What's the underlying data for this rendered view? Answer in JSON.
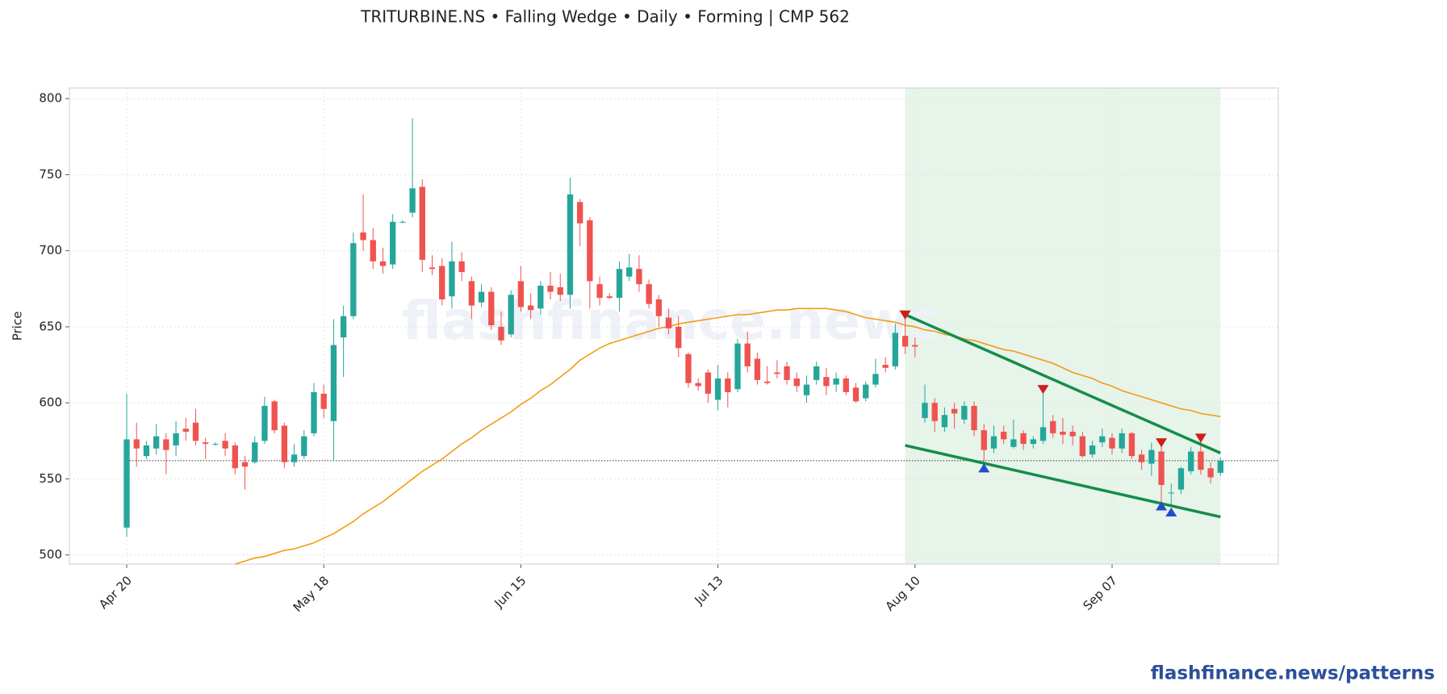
{
  "chart_data": {
    "type": "candlestick",
    "title": "TRITURBINE.NS  •  Falling Wedge  •  Daily  •  Forming  |  CMP 562",
    "ylabel": "Price",
    "watermark": "flashfinance.news",
    "categories": [
      "Apr 20",
      null,
      null,
      null,
      null,
      null,
      null,
      null,
      null,
      null,
      null,
      null,
      null,
      null,
      null,
      null,
      null,
      null,
      null,
      null,
      "May 18",
      null,
      null,
      null,
      null,
      null,
      null,
      null,
      null,
      null,
      null,
      null,
      null,
      null,
      null,
      null,
      null,
      null,
      null,
      null,
      "Jun 15",
      null,
      null,
      null,
      null,
      null,
      null,
      null,
      null,
      null,
      null,
      null,
      null,
      null,
      null,
      null,
      null,
      null,
      null,
      null,
      "Jul 13",
      null,
      null,
      null,
      null,
      null,
      null,
      null,
      null,
      null,
      null,
      null,
      null,
      null,
      null,
      null,
      null,
      null,
      null,
      null,
      "Aug 10",
      null,
      null,
      null,
      null,
      null,
      null,
      null,
      null,
      null,
      null,
      null,
      null,
      null,
      null,
      null,
      null,
      null,
      null,
      null,
      "Sep 07",
      null,
      null,
      null,
      null,
      null,
      null,
      null,
      null,
      null,
      null,
      null
    ],
    "open": [
      518,
      576,
      565,
      570,
      576,
      572,
      583,
      587,
      574,
      573,
      575,
      572,
      561,
      561,
      575,
      601,
      585,
      561,
      565,
      580,
      606,
      588,
      643,
      657,
      712,
      707,
      693,
      691,
      719,
      725,
      742,
      689,
      690,
      670,
      693,
      680,
      666,
      673,
      650,
      645,
      680,
      664,
      662,
      677,
      676,
      671,
      732,
      720,
      678,
      670,
      669,
      683,
      688,
      678,
      668,
      656,
      650,
      632,
      613,
      620,
      602,
      616,
      609,
      639,
      629,
      614,
      620,
      624,
      616,
      605,
      615,
      617,
      612,
      616,
      610,
      603,
      612,
      625,
      624,
      644,
      638,
      590,
      600,
      584,
      596,
      589,
      598,
      582,
      570,
      581,
      571,
      580,
      573,
      575,
      588,
      581,
      581,
      578,
      566,
      574,
      577,
      570,
      580,
      566,
      560,
      568,
      541,
      543,
      555,
      568,
      557,
      554
    ],
    "high": [
      606,
      587,
      575,
      586,
      580,
      588,
      590,
      596,
      577,
      574,
      580,
      574,
      565,
      578,
      604,
      602,
      587,
      573,
      582,
      613,
      612,
      655,
      664,
      712,
      737,
      715,
      702,
      724,
      720,
      787,
      747,
      697,
      695,
      706,
      699,
      683,
      678,
      676,
      660,
      674,
      690,
      672,
      680,
      686,
      685,
      748,
      734,
      722,
      683,
      672,
      693,
      698,
      697,
      681,
      671,
      662,
      657,
      633,
      616,
      622,
      625,
      620,
      642,
      647,
      633,
      624,
      628,
      627,
      620,
      618,
      627,
      623,
      620,
      618,
      613,
      614,
      629,
      630,
      652,
      658,
      643,
      612,
      603,
      597,
      600,
      601,
      601,
      586,
      585,
      585,
      589,
      582,
      578,
      607,
      592,
      590,
      585,
      581,
      575,
      583,
      580,
      583,
      581,
      569,
      574,
      573,
      547,
      558,
      571,
      577,
      561,
      564
    ],
    "low": [
      512,
      558,
      563,
      566,
      553,
      565,
      575,
      572,
      563,
      572,
      565,
      553,
      543,
      560,
      573,
      580,
      557,
      558,
      563,
      578,
      590,
      562,
      617,
      655,
      700,
      688,
      685,
      688,
      718,
      722,
      686,
      684,
      664,
      662,
      680,
      655,
      663,
      648,
      638,
      643,
      660,
      655,
      658,
      668,
      667,
      662,
      703,
      662,
      664,
      668,
      660,
      680,
      673,
      662,
      650,
      645,
      630,
      610,
      608,
      600,
      595,
      597,
      607,
      620,
      612,
      612,
      616,
      612,
      607,
      600,
      612,
      605,
      607,
      605,
      600,
      601,
      610,
      620,
      622,
      632,
      630,
      587,
      581,
      581,
      583,
      586,
      578,
      558,
      567,
      573,
      570,
      569,
      570,
      573,
      577,
      573,
      572,
      564,
      564,
      571,
      566,
      567,
      563,
      556,
      552,
      535,
      532,
      540,
      553,
      553,
      547,
      552
    ],
    "close": [
      576,
      570,
      572,
      578,
      569,
      580,
      581,
      575,
      573,
      573,
      570,
      557,
      558,
      574,
      598,
      582,
      561,
      566,
      578,
      607,
      596,
      638,
      657,
      705,
      707,
      693,
      690,
      719,
      719,
      741,
      694,
      688,
      668,
      693,
      686,
      664,
      673,
      651,
      641,
      671,
      663,
      661,
      677,
      673,
      671,
      737,
      718,
      680,
      669,
      669,
      688,
      689,
      678,
      665,
      657,
      649,
      636,
      613,
      611,
      606,
      616,
      607,
      639,
      624,
      615,
      613,
      619,
      615,
      611,
      612,
      624,
      611,
      616,
      607,
      601,
      612,
      619,
      623,
      646,
      637,
      637,
      600,
      588,
      592,
      593,
      598,
      582,
      569,
      578,
      576,
      576,
      573,
      576,
      584,
      580,
      579,
      578,
      565,
      572,
      578,
      570,
      580,
      565,
      561,
      569,
      546,
      541,
      557,
      568,
      556,
      551,
      562
    ],
    "up_color": "#26a69a",
    "down_color": "#ef5350",
    "ma": {
      "color": "#f39c12",
      "values": [
        null,
        null,
        null,
        null,
        null,
        null,
        null,
        null,
        null,
        null,
        null,
        494,
        496,
        498,
        499,
        501,
        503,
        504,
        506,
        508,
        511,
        514,
        518,
        522,
        527,
        531,
        535,
        540,
        545,
        550,
        555,
        559,
        563,
        568,
        573,
        577,
        582,
        586,
        590,
        594,
        599,
        603,
        608,
        612,
        617,
        622,
        628,
        632,
        636,
        639,
        641,
        643,
        645,
        647,
        649,
        650,
        652,
        653,
        654,
        655,
        656,
        657,
        658,
        658,
        659,
        660,
        661,
        661,
        662,
        662,
        662,
        662,
        661,
        660,
        658,
        656,
        655,
        654,
        653,
        651,
        650,
        648,
        647,
        645,
        644,
        642,
        641,
        639,
        637,
        635,
        634,
        632,
        630,
        628,
        626,
        623,
        620,
        618,
        616,
        613,
        611,
        608,
        606,
        604,
        602,
        600,
        598,
        596,
        595,
        593,
        592,
        591
      ]
    },
    "trend_color": "#168c4a",
    "trendlines": [
      {
        "x": [
          79,
          111
        ],
        "values": [
          658,
          567
        ]
      },
      {
        "x": [
          79,
          111
        ],
        "values": [
          572,
          525
        ]
      }
    ],
    "pivot_highs": {
      "color": "#cc1f1a",
      "x": [
        79,
        93,
        105,
        109
      ],
      "values": [
        657,
        608,
        573,
        576
      ]
    },
    "pivot_lows": {
      "color": "#1f4fcc",
      "x": [
        87,
        105,
        106
      ],
      "values": [
        558,
        533,
        529
      ]
    },
    "highlight": [
      79,
      111
    ],
    "highlight_color": "#e6f4ea",
    "cmp_line": 562,
    "ylim": [
      494,
      807
    ],
    "yticks": [
      500,
      550,
      600,
      650,
      700,
      750,
      800
    ],
    "grid": true
  },
  "footer": "flashfinance.news/patterns"
}
